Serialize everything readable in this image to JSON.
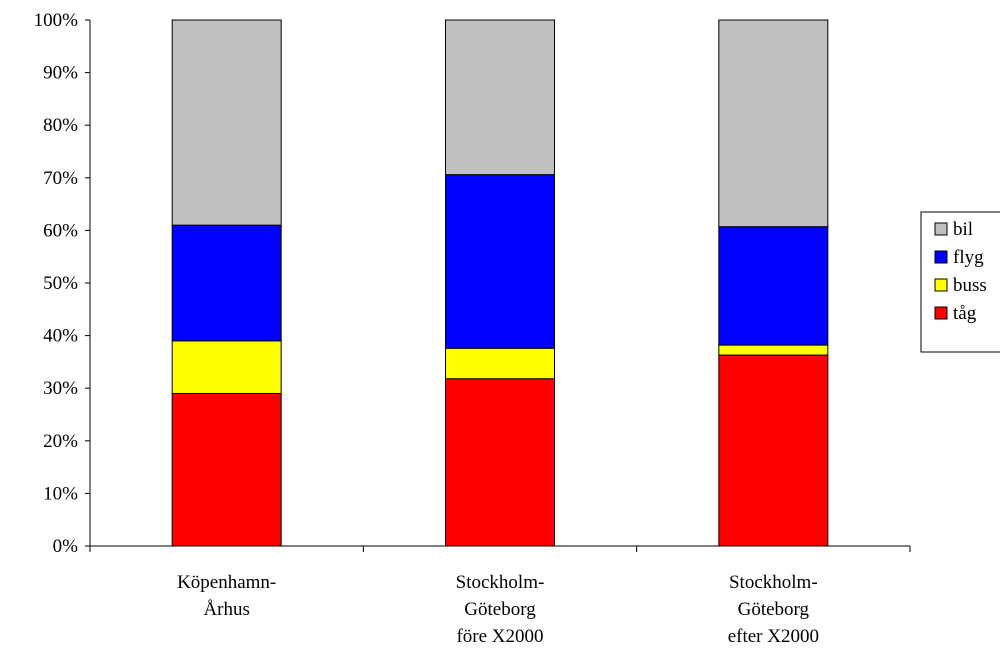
{
  "chart_data": {
    "type": "bar",
    "stacked": true,
    "percent": true,
    "categories": [
      [
        "Köpenhamn-",
        "Århus"
      ],
      [
        "Stockholm-",
        "Göteborg",
        "före X2000"
      ],
      [
        "Stockholm-",
        "Göteborg",
        "efter X2000"
      ]
    ],
    "series": [
      {
        "name": "tåg",
        "color": "#ff0000",
        "values": [
          29,
          31.8,
          36.3
        ]
      },
      {
        "name": "buss",
        "color": "#ffff00",
        "values": [
          10,
          5.8,
          1.9
        ]
      },
      {
        "name": "flyg",
        "color": "#0000ff",
        "values": [
          22,
          33,
          22.5
        ]
      },
      {
        "name": "bil",
        "color": "#c0c0c0",
        "values": [
          39,
          29.4,
          39.3
        ]
      }
    ],
    "yticks": [
      "0%",
      "10%",
      "20%",
      "30%",
      "40%",
      "50%",
      "60%",
      "70%",
      "80%",
      "90%",
      "100%"
    ],
    "ylim": [
      0,
      100
    ],
    "title": "",
    "xlabel": "",
    "ylabel": "",
    "legend": {
      "position": "right",
      "order": [
        "bil",
        "flyg",
        "buss",
        "tåg"
      ]
    },
    "grid": false
  }
}
